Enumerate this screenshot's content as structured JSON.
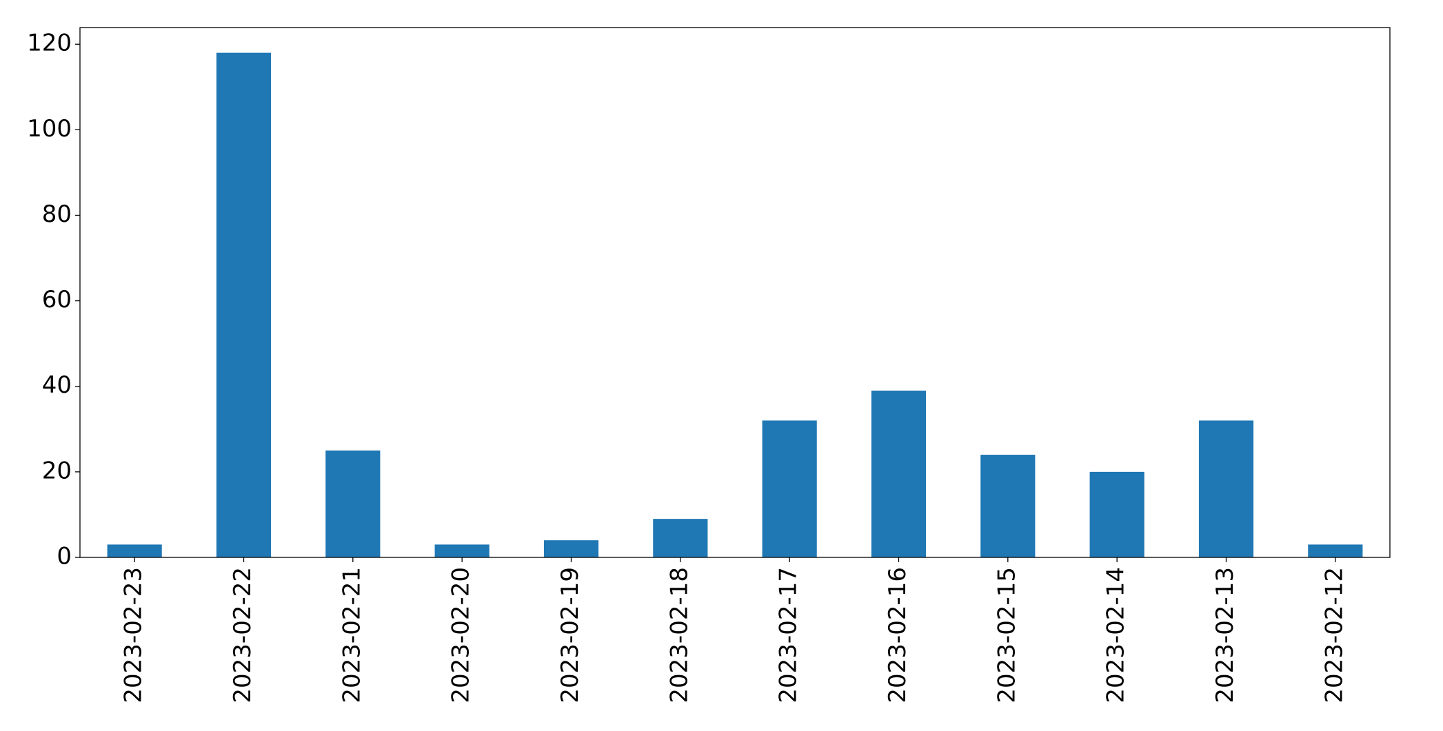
{
  "chart_data": {
    "type": "bar",
    "categories": [
      "2023-02-23",
      "2023-02-22",
      "2023-02-21",
      "2023-02-20",
      "2023-02-19",
      "2023-02-18",
      "2023-02-17",
      "2023-02-16",
      "2023-02-15",
      "2023-02-14",
      "2023-02-13",
      "2023-02-12"
    ],
    "values": [
      3,
      118,
      25,
      3,
      4,
      9,
      32,
      39,
      24,
      20,
      32,
      3
    ],
    "color": "#1f77b4",
    "ylim": [
      0,
      123.9
    ],
    "yticks": [
      0,
      20,
      40,
      60,
      80,
      100,
      120
    ],
    "grid": false
  }
}
